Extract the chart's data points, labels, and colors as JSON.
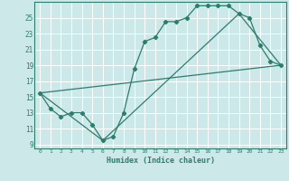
{
  "xlabel": "Humidex (Indice chaleur)",
  "bg_color": "#cce8e8",
  "grid_color": "#b0d0d0",
  "line_color": "#2d7d6e",
  "xlim": [
    -0.5,
    23.5
  ],
  "ylim": [
    8.5,
    27
  ],
  "xticks": [
    0,
    1,
    2,
    3,
    4,
    5,
    6,
    7,
    8,
    9,
    10,
    11,
    12,
    13,
    14,
    15,
    16,
    17,
    18,
    19,
    20,
    21,
    22,
    23
  ],
  "yticks": [
    9,
    11,
    13,
    15,
    17,
    19,
    21,
    23,
    25
  ],
  "line1_x": [
    0,
    1,
    2,
    3,
    4,
    5,
    6,
    7,
    8,
    9,
    10,
    11,
    12,
    13,
    14,
    15,
    16,
    17,
    18,
    19,
    20,
    21,
    22,
    23
  ],
  "line1_y": [
    15.5,
    13.5,
    12.5,
    13.0,
    13.0,
    11.5,
    9.5,
    10.0,
    13.0,
    18.5,
    22.0,
    22.5,
    24.5,
    24.5,
    25.0,
    26.5,
    26.5,
    26.5,
    26.5,
    25.5,
    25.0,
    21.5,
    19.5,
    19.0
  ],
  "line2_x": [
    0,
    23
  ],
  "line2_y": [
    15.5,
    19.0
  ],
  "line3_x": [
    0,
    6,
    19,
    23
  ],
  "line3_y": [
    15.5,
    9.5,
    25.5,
    19.0
  ]
}
